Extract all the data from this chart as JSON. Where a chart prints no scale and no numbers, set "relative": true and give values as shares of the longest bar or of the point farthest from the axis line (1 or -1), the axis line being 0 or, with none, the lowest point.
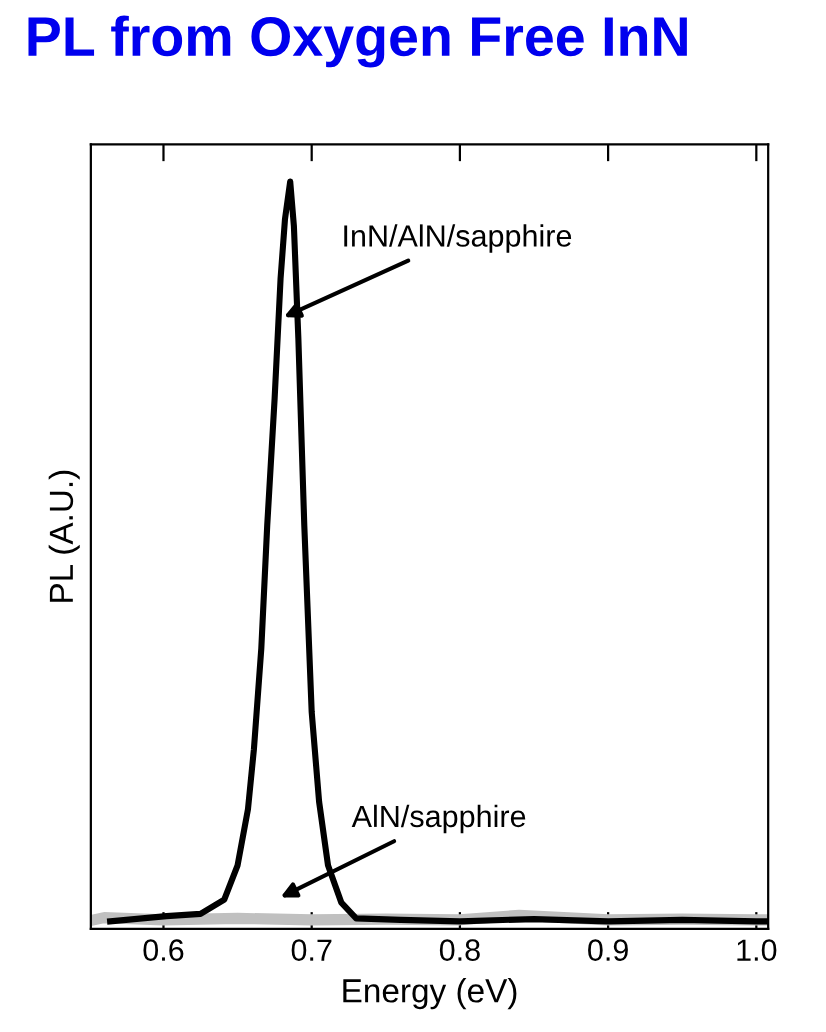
{
  "chart_data": {
    "type": "line",
    "title": "PL from Oxygen Free InN",
    "xlabel": "Energy (eV)",
    "ylabel": "PL (A.U.)",
    "relative": true,
    "xlim": [
      0.551,
      1.008
    ],
    "xticks": [
      0.6,
      0.7,
      0.8,
      0.9,
      {
        "value": 1.0,
        "label": "1.0"
      }
    ],
    "grid": false,
    "legend": false,
    "marker": "none",
    "line_style": "solid",
    "annotations": [
      "InN/AlN/sapphire",
      "AlN/sapphire"
    ],
    "series": [
      {
        "color": "#c0c0c0",
        "x": [
          0.553,
          0.56,
          0.6,
          0.65,
          0.7,
          0.75,
          0.8,
          0.84,
          0.9,
          0.95,
          1.0,
          1.008
        ],
        "values": [
          0.012,
          0.015,
          0.012,
          0.014,
          0.012,
          0.013,
          0.012,
          0.018,
          0.012,
          0.013,
          0.012,
          0.012
        ]
      },
      {
        "color": "#000000",
        "x": [
          0.564,
          0.602,
          0.625,
          0.641,
          0.65,
          0.657,
          0.661,
          0.666,
          0.67,
          0.675,
          0.679,
          0.682,
          0.6855,
          0.688,
          0.691,
          0.695,
          0.7,
          0.705,
          0.711,
          0.72,
          0.73,
          0.76,
          0.8,
          0.85,
          0.9,
          0.95,
          1.0,
          1.008
        ],
        "values": [
          0.01,
          0.017,
          0.02,
          0.039,
          0.085,
          0.16,
          0.24,
          0.375,
          0.54,
          0.71,
          0.87,
          0.95,
          1.0,
          0.94,
          0.79,
          0.54,
          0.29,
          0.17,
          0.085,
          0.035,
          0.014,
          0.012,
          0.01,
          0.013,
          0.01,
          0.012,
          0.01,
          0.01
        ]
      }
    ]
  }
}
